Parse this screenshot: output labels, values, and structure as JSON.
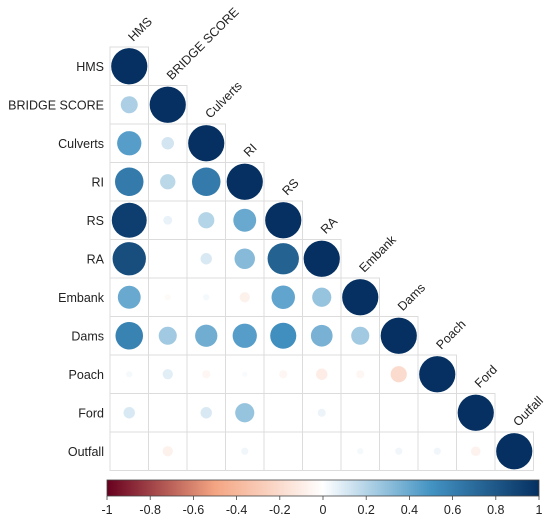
{
  "chart_data": {
    "type": "heatmap",
    "subtype": "correlation-lower-triangle-circles",
    "variables": [
      "HMS",
      "BRIDGE SCORE",
      "Culverts",
      "RI",
      "RS",
      "RA",
      "Embank",
      "Dams",
      "Poach",
      "Ford",
      "Outfall"
    ],
    "matrix": [
      [
        1.0
      ],
      [
        0.22,
        1.0
      ],
      [
        0.45,
        0.12,
        1.0
      ],
      [
        0.62,
        0.18,
        0.62,
        1.0
      ],
      [
        0.93,
        0.06,
        0.2,
        0.4,
        1.0
      ],
      [
        0.85,
        0.0,
        0.1,
        0.32,
        0.75,
        1.0
      ],
      [
        0.4,
        -0.03,
        0.03,
        -0.08,
        0.42,
        0.28,
        1.0
      ],
      [
        0.58,
        0.25,
        0.38,
        0.45,
        0.52,
        0.36,
        0.25,
        1.0
      ],
      [
        0.03,
        0.08,
        -0.05,
        0.02,
        -0.05,
        -0.1,
        -0.05,
        -0.2,
        1.0
      ],
      [
        0.1,
        0.0,
        0.1,
        0.28,
        0.0,
        0.05,
        0.0,
        0.0,
        0.0,
        1.0
      ],
      [
        0.0,
        -0.08,
        0.0,
        0.04,
        0.0,
        0.0,
        0.03,
        0.04,
        0.04,
        -0.07,
        1.0
      ]
    ],
    "colorbar": {
      "range": [
        -1,
        1
      ],
      "ticks": [
        "-1",
        "-0.8",
        "-0.6",
        "-0.4",
        "-0.2",
        "0",
        "0.2",
        "0.4",
        "0.6",
        "0.8",
        "1"
      ]
    },
    "colors": {
      "negative": "#67001F",
      "mid_negative": "#F4A582",
      "zero": "#FFFFFF",
      "mid_positive": "#4393C3",
      "positive": "#053061"
    },
    "legend": "bottom"
  }
}
